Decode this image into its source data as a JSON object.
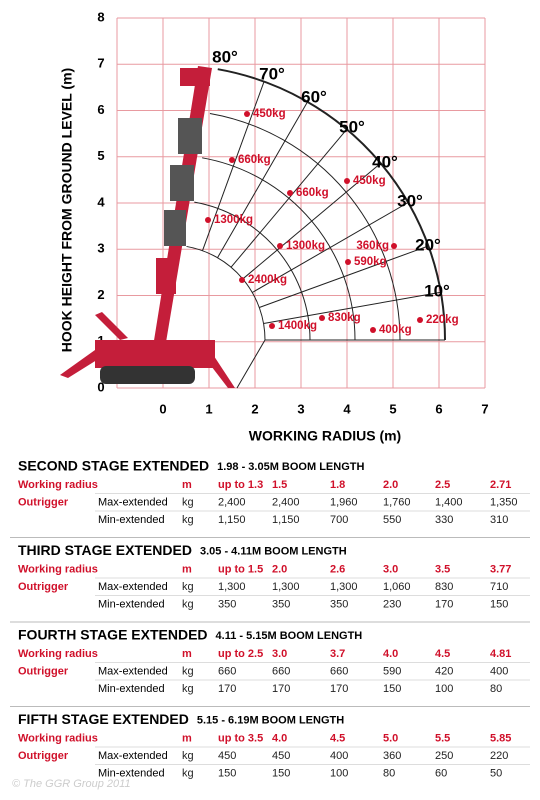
{
  "diagram": {
    "y_axis_label": "HOOK HEIGHT FROM GROUND LEVEL (m)",
    "x_axis_label": "WORKING RADIUS (m)",
    "yticks": [
      0,
      1,
      2,
      3,
      4,
      5,
      6,
      7,
      8
    ],
    "xticks": [
      0,
      1,
      2,
      3,
      4,
      5,
      6,
      7
    ],
    "angle_labels": [
      "80°",
      "70°",
      "60°",
      "50°",
      "40°",
      "30°",
      "20°",
      "10°"
    ],
    "load_labels": [
      "450kg",
      "660kg",
      "1300kg",
      "2400kg",
      "1400kg",
      "660kg",
      "1300kg",
      "830kg",
      "450kg",
      "360kg",
      "590kg",
      "400kg",
      "220kg"
    ]
  },
  "tables": [
    {
      "title": "SECOND STAGE EXTENDED",
      "subtitle": "1.98 - 3.05M BOOM LENGTH",
      "rows": [
        {
          "label": "Working radius",
          "unit": "m",
          "values": [
            "up to 1.3",
            "1.5",
            "1.8",
            "2.0",
            "2.5",
            "2.71"
          ]
        },
        {
          "label": "Outrigger",
          "sublabel": "Max-extended",
          "unit": "kg",
          "values": [
            "2,400",
            "2,400",
            "1,960",
            "1,760",
            "1,400",
            "1,350"
          ]
        },
        {
          "sublabel": "Min-extended",
          "unit": "kg",
          "values": [
            "1,150",
            "1,150",
            "700",
            "550",
            "330",
            "310"
          ]
        }
      ]
    },
    {
      "title": "THIRD STAGE EXTENDED",
      "subtitle": "3.05 - 4.11M BOOM LENGTH",
      "rows": [
        {
          "label": "Working radius",
          "unit": "m",
          "values": [
            "up to 1.5",
            "2.0",
            "2.6",
            "3.0",
            "3.5",
            "3.77"
          ]
        },
        {
          "label": "Outrigger",
          "sublabel": "Max-extended",
          "unit": "kg",
          "values": [
            "1,300",
            "1,300",
            "1,300",
            "1,060",
            "830",
            "710"
          ]
        },
        {
          "sublabel": "Min-extended",
          "unit": "kg",
          "values": [
            "350",
            "350",
            "350",
            "230",
            "170",
            "150"
          ]
        }
      ]
    },
    {
      "title": "FOURTH STAGE EXTENDED",
      "subtitle": "4.11 - 5.15M BOOM LENGTH",
      "rows": [
        {
          "label": "Working radius",
          "unit": "m",
          "values": [
            "up to 2.5",
            "3.0",
            "3.7",
            "4.0",
            "4.5",
            "4.81"
          ]
        },
        {
          "label": "Outrigger",
          "sublabel": "Max-extended",
          "unit": "kg",
          "values": [
            "660",
            "660",
            "660",
            "590",
            "420",
            "400"
          ]
        },
        {
          "sublabel": "Min-extended",
          "unit": "kg",
          "values": [
            "170",
            "170",
            "170",
            "150",
            "100",
            "80"
          ]
        }
      ]
    },
    {
      "title": "FIFTH STAGE EXTENDED",
      "subtitle": "5.15 - 6.19M BOOM LENGTH",
      "rows": [
        {
          "label": "Working radius",
          "unit": "m",
          "values": [
            "up to 3.5",
            "4.0",
            "4.5",
            "5.0",
            "5.5",
            "5.85"
          ]
        },
        {
          "label": "Outrigger",
          "sublabel": "Max-extended",
          "unit": "kg",
          "values": [
            "450",
            "450",
            "400",
            "360",
            "250",
            "220"
          ]
        },
        {
          "sublabel": "Min-extended",
          "unit": "kg",
          "values": [
            "150",
            "150",
            "100",
            "80",
            "60",
            "50"
          ]
        }
      ]
    }
  ],
  "copyright": "© The GGR Group 2011"
}
